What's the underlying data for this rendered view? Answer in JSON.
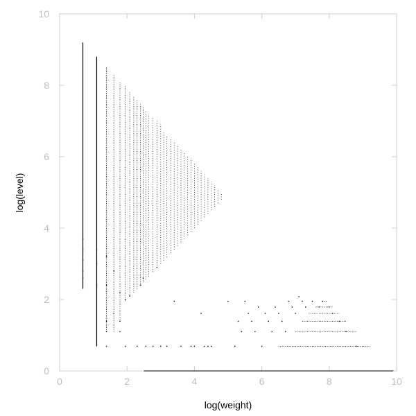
{
  "chart_data": {
    "type": "scatter",
    "title": "",
    "xlabel": "log(weight)",
    "ylabel": "log(level)",
    "xlim": [
      0,
      10
    ],
    "ylim": [
      0,
      10
    ],
    "xticks": [
      0,
      2,
      4,
      6,
      8,
      10
    ],
    "yticks": [
      0,
      2,
      4,
      6,
      8,
      10
    ],
    "grid": false,
    "legend": "none",
    "colors": {
      "points": "#000000",
      "frame": "#c8d0d3",
      "tick_labels": "#b8c0c3"
    },
    "series": [
      {
        "dense_columns": [
          {
            "x": 0.69,
            "ymin": 2.3,
            "ymax": 9.2
          },
          {
            "x": 1.1,
            "ymin": 0.69,
            "ymax": 8.8
          },
          {
            "x": 1.39,
            "ymin": 1.1,
            "ymax": 8.5
          },
          {
            "x": 1.61,
            "ymin": 1.1,
            "ymax": 8.3
          },
          {
            "x": 1.79,
            "ymin": 1.39,
            "ymax": 8.1
          },
          {
            "x": 1.95,
            "ymin": 1.95,
            "ymax": 8.0
          },
          {
            "x": 2.08,
            "ymin": 2.08,
            "ymax": 7.8
          },
          {
            "x": 2.2,
            "ymin": 2.2,
            "ymax": 7.7
          },
          {
            "x": 2.3,
            "ymin": 2.3,
            "ymax": 7.6
          },
          {
            "x": 2.4,
            "ymin": 2.4,
            "ymax": 7.5
          },
          {
            "x": 2.48,
            "ymin": 2.48,
            "ymax": 7.4
          },
          {
            "x": 2.56,
            "ymin": 2.56,
            "ymax": 7.3
          },
          {
            "x": 2.64,
            "ymin": 2.64,
            "ymax": 7.2
          },
          {
            "x": 2.77,
            "ymin": 2.77,
            "ymax": 7.1
          },
          {
            "x": 2.89,
            "ymin": 2.89,
            "ymax": 7.0
          },
          {
            "x": 3.0,
            "ymin": 3.0,
            "ymax": 6.9
          },
          {
            "x": 3.09,
            "ymin": 3.09,
            "ymax": 6.7
          },
          {
            "x": 3.18,
            "ymin": 3.18,
            "ymax": 6.6
          },
          {
            "x": 3.3,
            "ymin": 3.3,
            "ymax": 6.5
          },
          {
            "x": 3.4,
            "ymin": 3.4,
            "ymax": 6.4
          },
          {
            "x": 3.5,
            "ymin": 3.5,
            "ymax": 6.3
          },
          {
            "x": 3.6,
            "ymin": 3.6,
            "ymax": 6.2
          },
          {
            "x": 3.7,
            "ymin": 3.7,
            "ymax": 6.1
          },
          {
            "x": 3.8,
            "ymin": 3.8,
            "ymax": 6.0
          },
          {
            "x": 3.9,
            "ymin": 3.9,
            "ymax": 5.9
          },
          {
            "x": 4.0,
            "ymin": 4.0,
            "ymax": 5.8
          },
          {
            "x": 4.1,
            "ymin": 4.1,
            "ymax": 5.7
          },
          {
            "x": 4.2,
            "ymin": 4.2,
            "ymax": 5.6
          },
          {
            "x": 4.3,
            "ymin": 4.3,
            "ymax": 5.5
          },
          {
            "x": 4.4,
            "ymin": 4.4,
            "ymax": 5.4
          },
          {
            "x": 4.5,
            "ymin": 4.5,
            "ymax": 5.3
          },
          {
            "x": 4.6,
            "ymin": 4.6,
            "ymax": 5.2
          },
          {
            "x": 4.7,
            "ymin": 4.7,
            "ymax": 5.1
          },
          {
            "x": 4.8,
            "ymin": 4.8,
            "ymax": 5.0
          }
        ],
        "bottom_rows": [
          {
            "y": 0.0,
            "xmin": 2.5,
            "xmax": 9.9
          },
          {
            "y": 0.69,
            "xmin": 6.5,
            "xmax": 9.2
          },
          {
            "y": 1.1,
            "xmin": 7.0,
            "xmax": 8.8
          },
          {
            "y": 1.39,
            "xmin": 7.2,
            "xmax": 8.5
          },
          {
            "y": 1.61,
            "xmin": 7.4,
            "xmax": 8.3
          },
          {
            "y": 1.79,
            "xmin": 7.6,
            "xmax": 8.1
          },
          {
            "y": 1.95,
            "xmin": 7.8,
            "xmax": 7.95
          }
        ],
        "sparse_points": [
          [
            0.69,
            2.6
          ],
          [
            0.69,
            2.8
          ],
          [
            0.69,
            3.1
          ],
          [
            0.69,
            3.4
          ],
          [
            0.69,
            3.7
          ],
          [
            1.1,
            2.4
          ],
          [
            1.1,
            3.0
          ],
          [
            1.1,
            3.4
          ],
          [
            1.39,
            0.69
          ],
          [
            1.39,
            1.1
          ],
          [
            1.39,
            1.39
          ],
          [
            1.39,
            2.4
          ],
          [
            1.39,
            3.2
          ],
          [
            1.61,
            1.61
          ],
          [
            1.61,
            2.8
          ],
          [
            1.79,
            1.1
          ],
          [
            1.79,
            1.39
          ],
          [
            1.79,
            2.2
          ],
          [
            1.95,
            0.69
          ],
          [
            1.95,
            2.0
          ],
          [
            2.08,
            2.1
          ],
          [
            2.3,
            0.69
          ],
          [
            2.4,
            2.4
          ],
          [
            2.48,
            2.6
          ],
          [
            2.56,
            0.69
          ],
          [
            2.77,
            0.69
          ],
          [
            2.89,
            2.9
          ],
          [
            3.0,
            0.69
          ],
          [
            3.18,
            0.69
          ],
          [
            3.4,
            1.95
          ],
          [
            3.6,
            0.69
          ],
          [
            3.9,
            0.69
          ],
          [
            4.0,
            0.69
          ],
          [
            4.2,
            1.61
          ],
          [
            4.3,
            0.69
          ],
          [
            4.4,
            0.69
          ],
          [
            4.5,
            0.69
          ],
          [
            5.0,
            1.95
          ],
          [
            5.2,
            0.69
          ],
          [
            5.3,
            1.39
          ],
          [
            5.4,
            1.1
          ],
          [
            5.5,
            1.95
          ],
          [
            5.6,
            1.61
          ],
          [
            5.7,
            1.39
          ],
          [
            5.8,
            1.1
          ],
          [
            5.9,
            1.79
          ],
          [
            6.0,
            0.69
          ],
          [
            6.1,
            1.61
          ],
          [
            6.2,
            1.39
          ],
          [
            6.3,
            1.1
          ],
          [
            6.4,
            1.79
          ],
          [
            6.5,
            1.61
          ],
          [
            6.6,
            1.39
          ],
          [
            6.7,
            1.1
          ],
          [
            6.8,
            1.95
          ],
          [
            6.9,
            1.79
          ],
          [
            7.0,
            1.61
          ],
          [
            7.1,
            2.08
          ],
          [
            7.2,
            1.95
          ],
          [
            7.3,
            1.79
          ],
          [
            7.5,
            1.95
          ],
          [
            7.7,
            1.79
          ],
          [
            7.8,
            1.95
          ],
          [
            8.0,
            1.79
          ],
          [
            8.1,
            1.61
          ],
          [
            8.3,
            1.39
          ],
          [
            8.5,
            1.1
          ],
          [
            8.8,
            0.69
          ]
        ]
      }
    ]
  }
}
